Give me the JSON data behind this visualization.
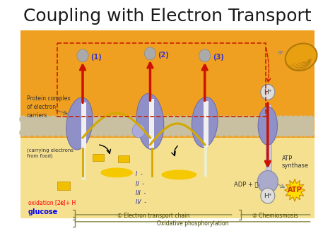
{
  "title": "Coupling with Electron Transport",
  "title_fontsize": 18,
  "title_color": "#1a1a1a",
  "bg_color": "#ffffff",
  "diagram_bg": "#f0a020",
  "lumen_color": "#f5e090",
  "label_1": "(1)",
  "label_2": "(2)",
  "label_3": "(3)",
  "text_protein_complex": "Protein complex\nof electron\ncarriers",
  "text_carrying": "(carrying electrons\nfrom food)",
  "text_oxidation": "oxidation [2e + H",
  "text_glucose": "glucose",
  "text_I_IV": "I  -\nII  -\nIII  -\nIV  -",
  "text_adp": "ADP + Ⓟᵢ",
  "text_atp_synthase": "ATP\nsynthase",
  "text_atp": "ATP",
  "text_Hplus_top": "H⁺",
  "text_Hplus_bot": "H⁺",
  "label_chain": "① Electron transport chain",
  "label_chemiosmosis": "② Chemiosmosis",
  "label_oxidative": "Oxidative phosphorylation",
  "orange": "#f0a020",
  "yellow_lumen": "#f5e090",
  "yellow_bright": "#f5c800",
  "purple_prot": "#9090c8",
  "purple_dark": "#7070aa",
  "gray_circle": "#aaaaaa",
  "red_arrow": "#cc1100",
  "mem_gray": "#b8b090",
  "mem_bead": "#c8c0a0",
  "dashed_red": "#cc2200"
}
